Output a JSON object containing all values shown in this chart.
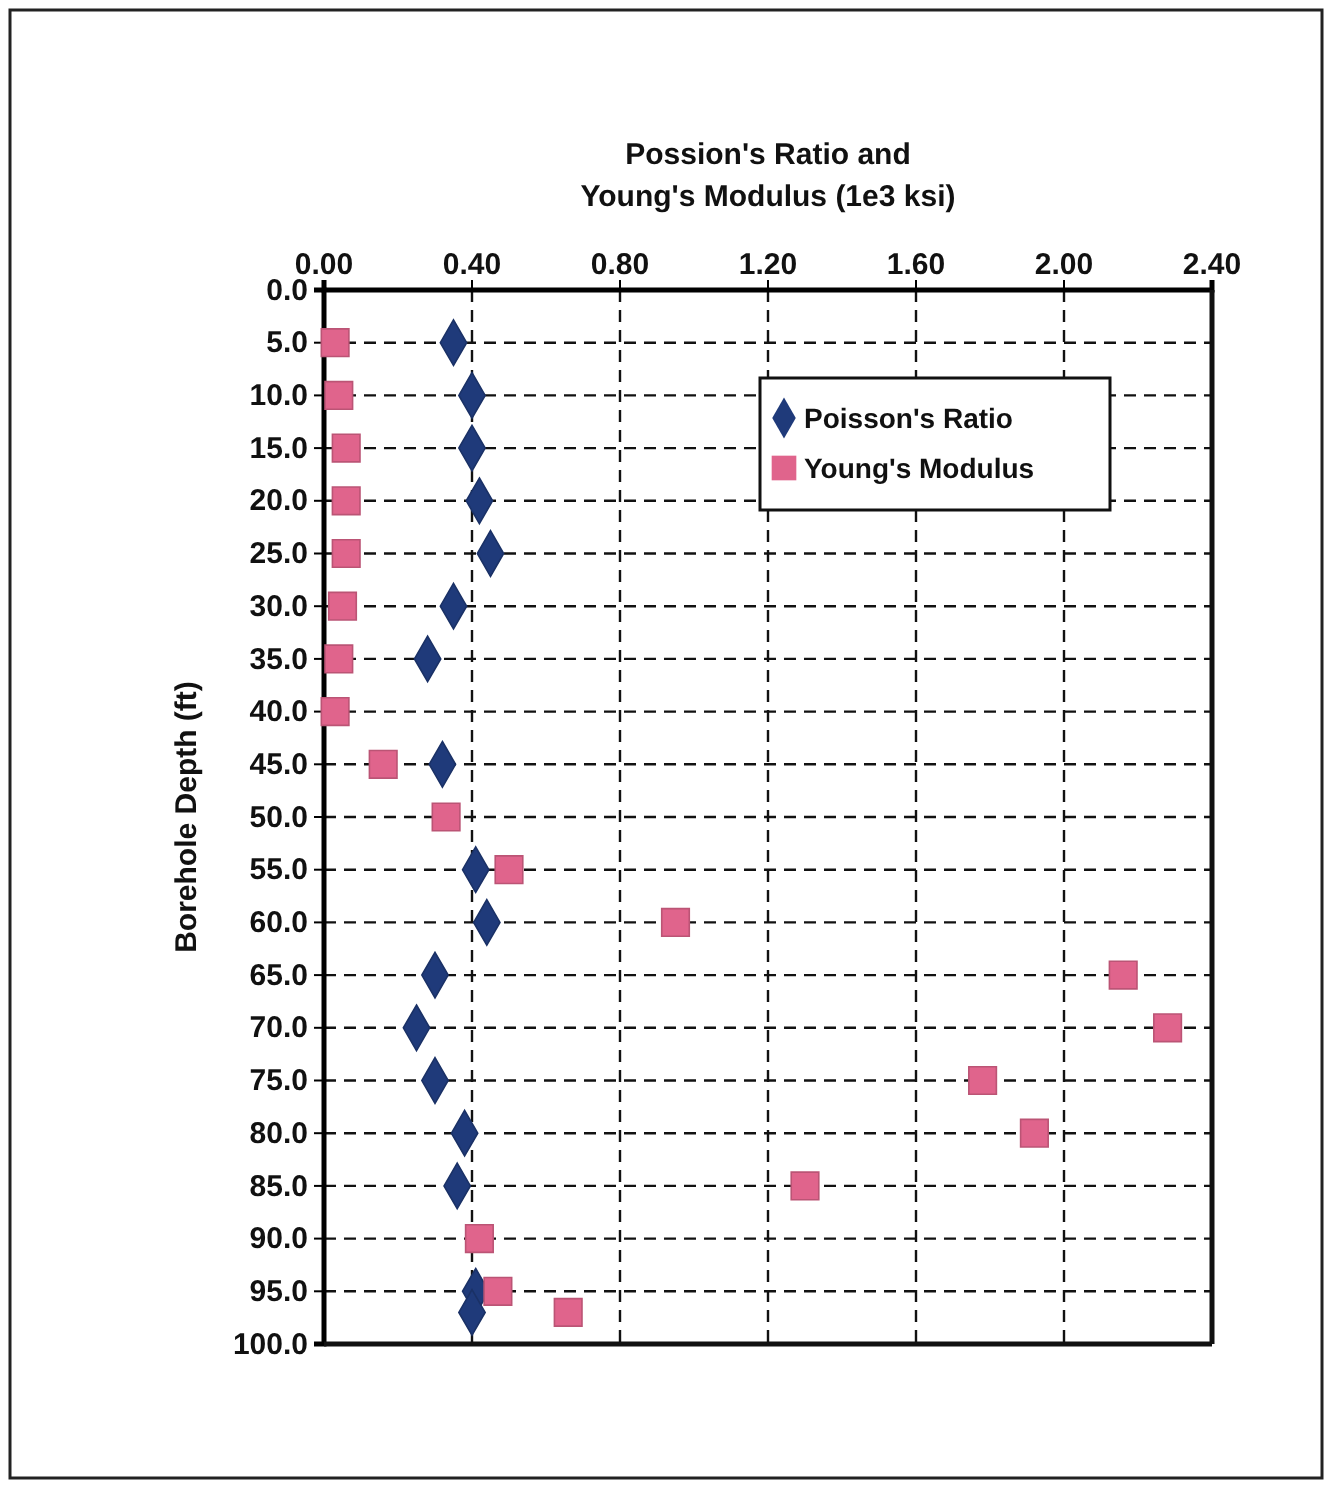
{
  "chart_data": {
    "type": "scatter",
    "xlabel": "Possion's Ratio and Young's Modulus (1e3 ksi)",
    "ylabel": "Borehole Depth (ft)",
    "xlim": [
      0,
      2.4
    ],
    "xticks": [
      {
        "value": 0,
        "label": "0.00"
      },
      {
        "value": 0.4,
        "label": "0.40"
      },
      {
        "value": 0.8,
        "label": "0.80"
      },
      {
        "value": 1.2,
        "label": "1.20"
      },
      {
        "value": 1.6,
        "label": "1.60"
      },
      {
        "value": 2.0,
        "label": "2.00"
      },
      {
        "value": 2.4,
        "label": "2.40"
      }
    ],
    "ylim": [
      100,
      0
    ],
    "yticks": [
      {
        "value": 0,
        "label": "0.0"
      },
      {
        "value": 5,
        "label": "5.0"
      },
      {
        "value": 10,
        "label": "10.0"
      },
      {
        "value": 15,
        "label": "15.0"
      },
      {
        "value": 20,
        "label": "20.0"
      },
      {
        "value": 25,
        "label": "25.0"
      },
      {
        "value": 30,
        "label": "30.0"
      },
      {
        "value": 35,
        "label": "35.0"
      },
      {
        "value": 40,
        "label": "40.0"
      },
      {
        "value": 45,
        "label": "45.0"
      },
      {
        "value": 50,
        "label": "50.0"
      },
      {
        "value": 55,
        "label": "55.0"
      },
      {
        "value": 60,
        "label": "60.0"
      },
      {
        "value": 65,
        "label": "65.0"
      },
      {
        "value": 70,
        "label": "70.0"
      },
      {
        "value": 75,
        "label": "75.0"
      },
      {
        "value": 80,
        "label": "80.0"
      },
      {
        "value": 85,
        "label": "85.0"
      },
      {
        "value": 90,
        "label": "90.0"
      },
      {
        "value": 95,
        "label": "95.0"
      },
      {
        "value": 100,
        "label": "100.0"
      }
    ],
    "grid": true,
    "legend": "top right",
    "series": [
      {
        "name": "Poisson's Ratio",
        "color": "#1f3a7a",
        "marker": "diamond",
        "values": [
          5,
          10,
          15,
          20,
          25,
          30,
          35,
          45,
          55,
          60,
          65,
          70,
          75,
          80,
          85,
          95,
          97
        ],
        "x": [
          0.35,
          0.4,
          0.4,
          0.42,
          0.45,
          0.35,
          0.28,
          0.32,
          0.41,
          0.44,
          0.3,
          0.25,
          0.3,
          0.38,
          0.36,
          0.41,
          0.4
        ]
      },
      {
        "name": "Young's Modulus",
        "color": "#e0648c",
        "marker": "square",
        "values": [
          5,
          10,
          15,
          20,
          25,
          30,
          35,
          40,
          45,
          50,
          55,
          60,
          65,
          70,
          75,
          80,
          85,
          90,
          95,
          97
        ],
        "x": [
          0.03,
          0.04,
          0.06,
          0.06,
          0.06,
          0.05,
          0.04,
          0.03,
          0.16,
          0.33,
          0.5,
          0.95,
          2.16,
          2.28,
          1.78,
          1.92,
          1.3,
          0.42,
          0.47,
          0.66
        ]
      }
    ]
  }
}
